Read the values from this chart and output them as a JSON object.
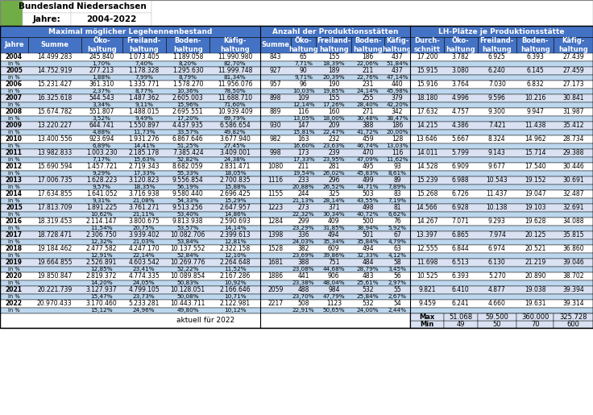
{
  "title_bundesland": "Bundesland",
  "title_bundesland_val": "Niedersachsen",
  "title_jahre": "Jahre:",
  "title_jahre_val": "2004-2022",
  "header1": "Maximal möglicher Legehennenbestand",
  "header2": "Anzahl der Produktionsstätten",
  "header3": "LH-Plätze je Produktionsstätte",
  "years": [
    2004,
    2005,
    2006,
    2007,
    2008,
    2009,
    2010,
    2011,
    2012,
    2013,
    2014,
    2015,
    2016,
    2017,
    2018,
    2019,
    2020,
    2021,
    2022
  ],
  "bestand_summe": [
    14499283,
    14752919,
    15231427,
    16325618,
    15674782,
    13220227,
    13400556,
    13982833,
    15690594,
    17006735,
    17634855,
    17813709,
    18319453,
    18728471,
    19184462,
    19664855,
    19850847,
    20221739,
    20970433
  ],
  "bestand_oeko": [
    245840,
    277213,
    361310,
    544543,
    551807,
    644741,
    923694,
    1003230,
    1457721,
    1628223,
    1641052,
    1891225,
    2114147,
    2306750,
    2477582,
    2526891,
    2819372,
    3127937,
    3170460
  ],
  "bestand_freil": [
    1073405,
    1178328,
    1335771,
    1487362,
    1488015,
    1550897,
    1931276,
    2185178,
    2719343,
    3120823,
    3716938,
    3761271,
    3800675,
    3939402,
    4247170,
    4603542,
    4774335,
    4799105,
    5233281
  ],
  "bestand_boden": [
    1189058,
    1295630,
    1578270,
    2605003,
    2695551,
    4437935,
    6867646,
    7385424,
    8682059,
    9556854,
    9580440,
    9513256,
    9813938,
    10082706,
    10137552,
    10269776,
    10089854,
    10128051,
    10443711
  ],
  "bestand_kaefig": [
    11990980,
    11999748,
    11956076,
    11688710,
    10939409,
    6586654,
    3677940,
    3409001,
    2831471,
    2700835,
    2696425,
    2647957,
    2590693,
    2399613,
    2322158,
    2264648,
    2167286,
    2166646,
    2122981
  ],
  "bestand_oeko_pct": [
    "1,70%",
    "1,88%",
    "2,37%",
    "3,34%",
    "3,52%",
    "4,88%",
    "6,89%",
    "7,17%",
    "9,29%",
    "9,57%",
    "9,31%",
    "10,62%",
    "11,54%",
    "12,32%",
    "12,91%",
    "12,85%",
    "14,20%",
    "15,47%",
    "15,12%"
  ],
  "bestand_freil_pct": [
    "7,40%",
    "7,99%",
    "8,77%",
    "9,11%",
    "9,49%",
    "11,73%",
    "14,41%",
    "15,63%",
    "17,33%",
    "18,35%",
    "21,08%",
    "21,11%",
    "20,75%",
    "21,03%",
    "22,14%",
    "23,41%",
    "24,05%",
    "23,73%",
    "24,96%"
  ],
  "bestand_boden_pct": [
    "8,20%",
    "8,79%",
    "10,36%",
    "15,96%",
    "17,20%",
    "33,57%",
    "51,25%",
    "52,82%",
    "55,33%",
    "56,19%",
    "54,33%",
    "53,40%",
    "53,57%",
    "53,84%",
    "52,84%",
    "52,22%",
    "50,83%",
    "50,08%",
    "49,80%"
  ],
  "bestand_kaefig_pct": [
    "82,70%",
    "81,34%",
    "78,50%",
    "71,60%",
    "69,79%",
    "49,82%",
    "27,45%",
    "24,38%",
    "18,05%",
    "15,88%",
    "15,29%",
    "14,86%",
    "14,14%",
    "12,81%",
    "12,10%",
    "11,52%",
    "10,92%",
    "10,71%",
    "10,12%"
  ],
  "prod_summe": [
    843,
    927,
    957,
    898,
    889,
    930,
    982,
    998,
    1080,
    1116,
    1155,
    1223,
    1284,
    1398,
    1528,
    1681,
    1886,
    2059,
    2217
  ],
  "prod_oeko": [
    65,
    90,
    96,
    109,
    116,
    147,
    163,
    173,
    211,
    233,
    244,
    273,
    299,
    336,
    382,
    388,
    441,
    488,
    508
  ],
  "prod_freil": [
    155,
    189,
    190,
    155,
    160,
    209,
    232,
    239,
    281,
    296,
    325,
    371,
    409,
    494,
    609,
    751,
    906,
    984,
    1123
  ],
  "prod_boden": [
    186,
    211,
    231,
    255,
    271,
    388,
    459,
    470,
    495,
    499,
    503,
    498,
    500,
    501,
    494,
    484,
    483,
    532,
    532
  ],
  "prod_kaefig": [
    437,
    437,
    440,
    379,
    342,
    186,
    128,
    116,
    93,
    89,
    83,
    81,
    76,
    67,
    63,
    58,
    56,
    55,
    54
  ],
  "prod_oeko_pct": [
    "7,71%",
    "9,71%",
    "10,03%",
    "12,14%",
    "13,05%",
    "15,81%",
    "16,60%",
    "17,33%",
    "19,54%",
    "20,88%",
    "21,13%",
    "22,32%",
    "23,29%",
    "24,03%",
    "23,69%",
    "23,08%",
    "23,38%",
    "23,70%",
    "22,91%"
  ],
  "prod_freil_pct": [
    "18,39%",
    "20,39%",
    "19,85%",
    "17,26%",
    "18,00%",
    "22,47%",
    "23,63%",
    "23,95%",
    "26,02%",
    "26,52%",
    "28,14%",
    "30,34%",
    "31,85%",
    "35,34%",
    "39,86%",
    "44,68%",
    "48,04%",
    "47,79%",
    "50,65%"
  ],
  "prod_boden_pct": [
    "22,06%",
    "22,76%",
    "24,14%",
    "28,40%",
    "30,48%",
    "41,72%",
    "46,74%",
    "47,09%",
    "45,83%",
    "44,71%",
    "43,55%",
    "40,72%",
    "38,94%",
    "35,84%",
    "32,33%",
    "28,79%",
    "25,61%",
    "25,84%",
    "24,00%"
  ],
  "prod_kaefig_pct": [
    "51,84%",
    "47,14%",
    "45,98%",
    "42,20%",
    "38,47%",
    "20,00%",
    "13,03%",
    "11,62%",
    "8,61%",
    "7,89%",
    "7,19%",
    "6,62%",
    "5,92%",
    "4,79%",
    "4,12%",
    "3,45%",
    "2,97%",
    "2,67%",
    "2,44%"
  ],
  "lh_durch": [
    17200,
    15915,
    15916,
    18180,
    17632,
    14215,
    13646,
    14011,
    14528,
    15239,
    15268,
    14566,
    14267,
    13397,
    12555,
    11698,
    10525,
    9821,
    9459
  ],
  "lh_oeko": [
    3782,
    3080,
    3764,
    4996,
    4757,
    4386,
    5667,
    5799,
    6909,
    6988,
    6726,
    6928,
    7071,
    6865,
    6844,
    6513,
    6393,
    6410,
    6241
  ],
  "lh_freil": [
    6925,
    6240,
    7030,
    9596,
    9300,
    7421,
    8324,
    9143,
    9677,
    10543,
    11437,
    10138,
    9293,
    7974,
    6974,
    6130,
    5270,
    4877,
    4660
  ],
  "lh_boden": [
    6393,
    6145,
    6832,
    10216,
    9947,
    11438,
    14962,
    15714,
    17540,
    19152,
    19047,
    19103,
    19628,
    20125,
    20521,
    21219,
    20890,
    19038,
    19631
  ],
  "lh_kaefig": [
    27439,
    27459,
    27173,
    30841,
    31987,
    35412,
    28734,
    29388,
    30446,
    30691,
    32487,
    32691,
    34088,
    35815,
    36860,
    39046,
    38702,
    39394,
    39314
  ],
  "footer_aktuell": "aktuell für 2022",
  "footer_min_label": "Min",
  "footer_max_label": "Max",
  "footer_min_vals": [
    49,
    50,
    70,
    600
  ],
  "footer_max_vals": [
    51068,
    59500,
    360000,
    325728
  ],
  "color_header_bg": "#4472C4",
  "color_header_text": "#FFFFFF",
  "color_row_odd": "#FFFFFF",
  "color_row_even": "#D9E1F2",
  "color_pct_bg": "#BDD7EE",
  "color_border": "#000000"
}
